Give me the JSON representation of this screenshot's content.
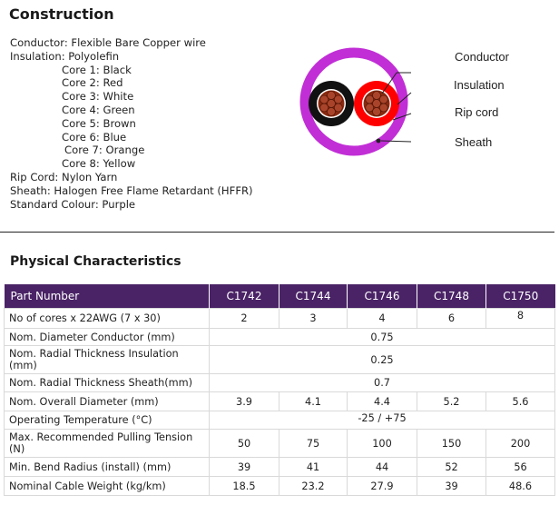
{
  "construction": {
    "heading": "Construction",
    "lines": [
      "Conductor: Flexible Bare Copper wire",
      "Insulation: Polyolefin",
      "Core 1: Black",
      "Core 2: Red",
      "Core 3: White",
      "Core 4: Green",
      "Core 5: Brown",
      "Core 6: Blue",
      "Core 7: Orange",
      "Core 8: Yellow",
      "Rip Cord: Nylon Yarn",
      "Sheath: Halogen Free Flame Retardant (HFFR)",
      "Standard Colour: Purple"
    ]
  },
  "diagram": {
    "labels": [
      "Conductor",
      "Insulation",
      "Rip cord",
      "Sheath"
    ],
    "colors": {
      "sheath": "#c12ed6",
      "core_black": "#111111",
      "core_red": "#ff0000",
      "copper": "#8b2a10"
    }
  },
  "physical": {
    "heading": "Physical Characteristics",
    "header": [
      "Part Number",
      "C1742",
      "C1744",
      "C1746",
      "C1748",
      "C1750"
    ],
    "rows": [
      {
        "label": "No of cores x 22AWG (7 x 30)",
        "values": [
          "2",
          "3",
          "4",
          "6",
          "8"
        ]
      },
      {
        "label": "Nom. Diameter Conductor (mm)",
        "value": "0.75"
      },
      {
        "label": "Nom. Radial Thickness Insulation (mm)",
        "value": "0.25"
      },
      {
        "label": "Nom. Radial Thickness Sheath(mm)",
        "value": "0.7"
      },
      {
        "label": "Nom. Overall Diameter (mm)",
        "values": [
          "3.9",
          "4.1",
          "4.4",
          "5.2",
          "5.6"
        ]
      },
      {
        "label": "Operating Temperature (°C)",
        "value": "-25 / +75"
      },
      {
        "label": "Max. Recommended Pulling Tension (N)",
        "values": [
          "50",
          "75",
          "100",
          "150",
          "200"
        ]
      },
      {
        "label": "Min. Bend Radius (install)  (mm)",
        "values": [
          "39",
          "41",
          "44",
          "52",
          "56"
        ]
      },
      {
        "label": "Nominal Cable Weight (kg/km)",
        "values": [
          "18.5",
          "23.2",
          "27.9",
          "39",
          "48.6"
        ]
      }
    ]
  },
  "colors": {
    "header_bg": "#4a2366",
    "header_text": "#ffffff"
  }
}
